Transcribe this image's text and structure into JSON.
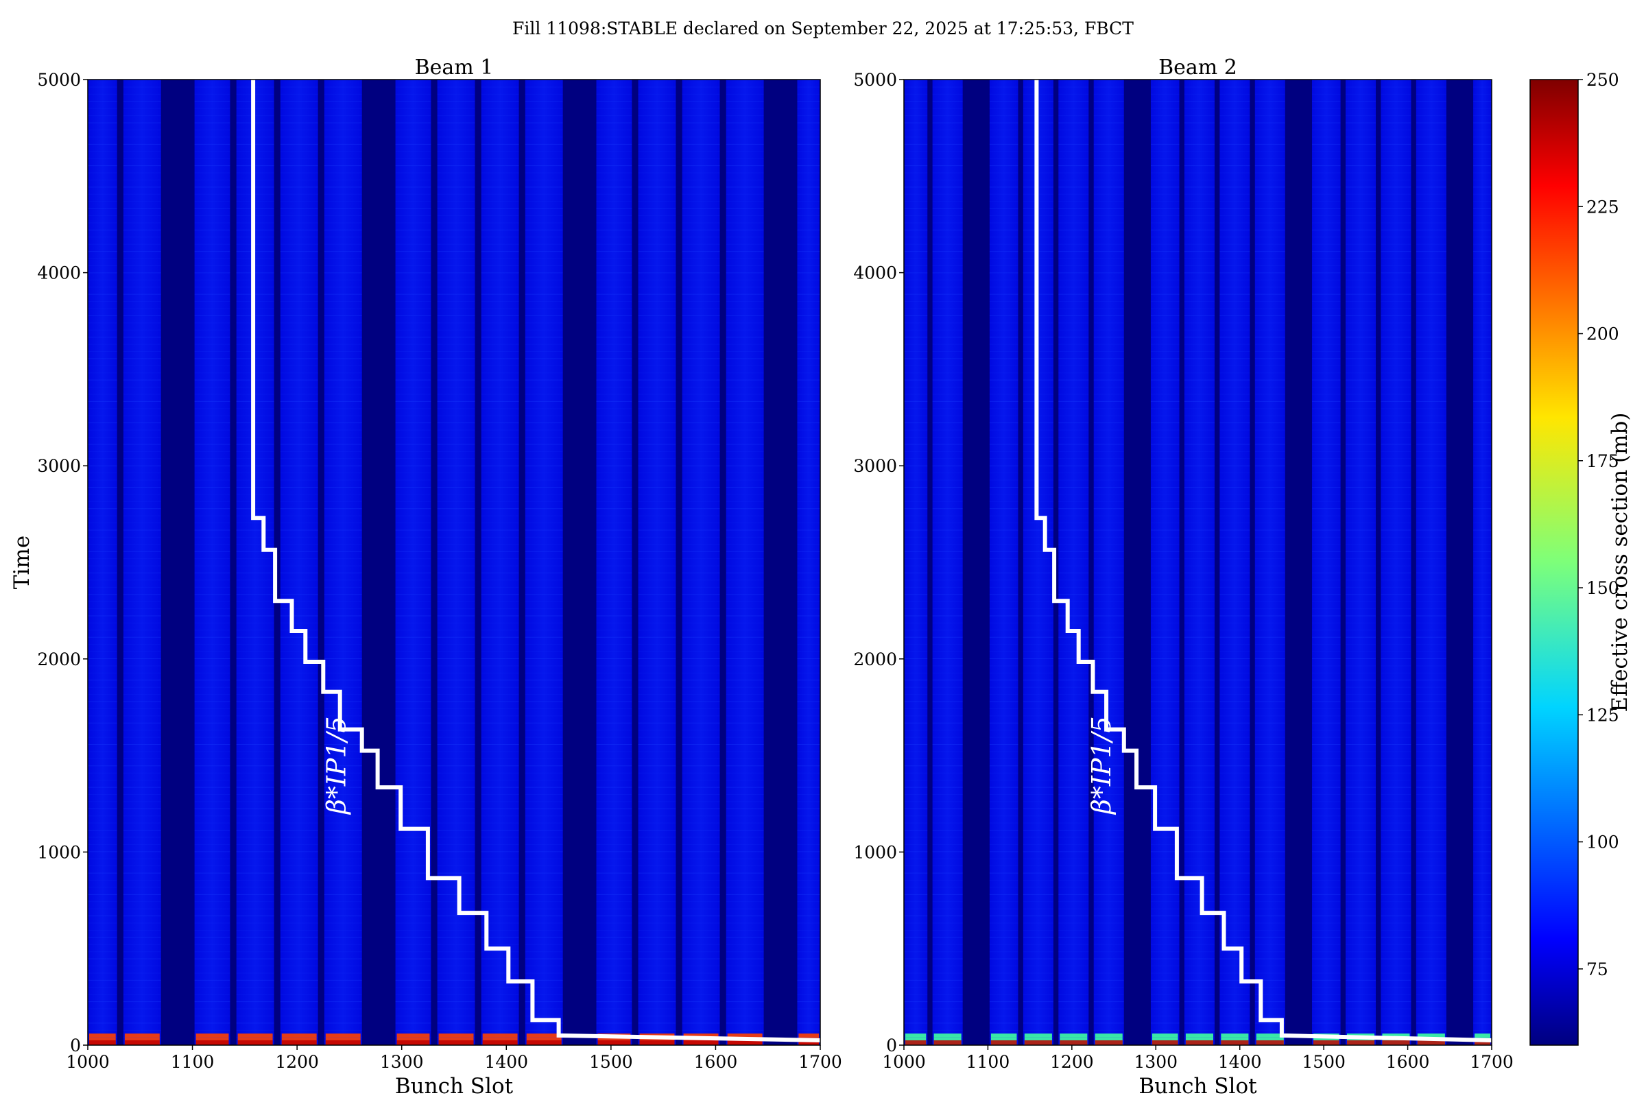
{
  "suptitle": "Fill 11098:STABLE declared on September 22, 2025 at 17:25:53, FBCT",
  "colors": {
    "background": "#0000d8",
    "empty_band": "#000080",
    "bottom_hot": "#ff4000",
    "bottom_warm": "#40ffa0",
    "overlay_line": "#ffffff",
    "text": "#000000"
  },
  "colorbar": {
    "label": "Effective cross section (mb)",
    "range": [
      60,
      250
    ],
    "ticks": [
      "75",
      "100",
      "125",
      "150",
      "175",
      "200",
      "225",
      "250"
    ],
    "colormap": "jet"
  },
  "chart_data": [
    {
      "type": "heatmap",
      "title": "Beam 1",
      "xlabel": "Bunch Slot",
      "ylabel": "Time",
      "xlim": [
        1000,
        1700
      ],
      "ylim": [
        0,
        5000
      ],
      "xticks": [
        "1000",
        "1100",
        "1200",
        "1300",
        "1400",
        "1500",
        "1600",
        "1700"
      ],
      "yticks": [
        "0",
        "1000",
        "2000",
        "3000",
        "4000",
        "5000"
      ],
      "typical_value_mb": 85,
      "empty_slot_ranges": [
        [
          1028,
          1034
        ],
        [
          1070,
          1102
        ],
        [
          1136,
          1142
        ],
        [
          1178,
          1184
        ],
        [
          1220,
          1226
        ],
        [
          1262,
          1294
        ],
        [
          1328,
          1334
        ],
        [
          1370,
          1376
        ],
        [
          1412,
          1418
        ],
        [
          1454,
          1486
        ],
        [
          1520,
          1526
        ],
        [
          1562,
          1568
        ],
        [
          1604,
          1610
        ],
        [
          1646,
          1678
        ]
      ],
      "overlay": {
        "label": "β*IP1/5",
        "steps": [
          {
            "slot": 1158,
            "time": 5000
          },
          {
            "slot": 1158,
            "time": 2730
          },
          {
            "slot": 1168,
            "time": 2730
          },
          {
            "slot": 1168,
            "time": 2565
          },
          {
            "slot": 1179,
            "time": 2565
          },
          {
            "slot": 1179,
            "time": 2300
          },
          {
            "slot": 1195,
            "time": 2300
          },
          {
            "slot": 1195,
            "time": 2145
          },
          {
            "slot": 1208,
            "time": 2145
          },
          {
            "slot": 1208,
            "time": 1985
          },
          {
            "slot": 1225,
            "time": 1985
          },
          {
            "slot": 1225,
            "time": 1830
          },
          {
            "slot": 1241,
            "time": 1830
          },
          {
            "slot": 1241,
            "time": 1635
          },
          {
            "slot": 1262,
            "time": 1635
          },
          {
            "slot": 1262,
            "time": 1525
          },
          {
            "slot": 1277,
            "time": 1525
          },
          {
            "slot": 1277,
            "time": 1335
          },
          {
            "slot": 1299,
            "time": 1335
          },
          {
            "slot": 1299,
            "time": 1120
          },
          {
            "slot": 1325,
            "time": 1120
          },
          {
            "slot": 1325,
            "time": 865
          },
          {
            "slot": 1355,
            "time": 865
          },
          {
            "slot": 1355,
            "time": 685
          },
          {
            "slot": 1381,
            "time": 685
          },
          {
            "slot": 1381,
            "time": 500
          },
          {
            "slot": 1402,
            "time": 500
          },
          {
            "slot": 1402,
            "time": 330
          },
          {
            "slot": 1425,
            "time": 330
          },
          {
            "slot": 1425,
            "time": 130
          },
          {
            "slot": 1450,
            "time": 130
          },
          {
            "slot": 1450,
            "time": 50
          },
          {
            "slot": 1700,
            "time": 25
          }
        ]
      }
    },
    {
      "type": "heatmap",
      "title": "Beam 2",
      "xlabel": "Bunch Slot",
      "ylabel": "",
      "xlim": [
        1000,
        1700
      ],
      "ylim": [
        0,
        5000
      ],
      "xticks": [
        "1000",
        "1100",
        "1200",
        "1300",
        "1400",
        "1500",
        "1600",
        "1700"
      ],
      "yticks": [
        "0",
        "1000",
        "2000",
        "3000",
        "4000",
        "5000"
      ],
      "typical_value_mb": 85,
      "empty_slot_ranges": [
        [
          1028,
          1034
        ],
        [
          1070,
          1102
        ],
        [
          1136,
          1142
        ],
        [
          1178,
          1184
        ],
        [
          1220,
          1226
        ],
        [
          1262,
          1294
        ],
        [
          1328,
          1334
        ],
        [
          1370,
          1376
        ],
        [
          1412,
          1418
        ],
        [
          1454,
          1486
        ],
        [
          1520,
          1526
        ],
        [
          1562,
          1568
        ],
        [
          1604,
          1610
        ],
        [
          1646,
          1678
        ]
      ],
      "overlay": {
        "label": "β*IP1/5",
        "steps": [
          {
            "slot": 1158,
            "time": 5000
          },
          {
            "slot": 1158,
            "time": 2730
          },
          {
            "slot": 1168,
            "time": 2730
          },
          {
            "slot": 1168,
            "time": 2565
          },
          {
            "slot": 1179,
            "time": 2565
          },
          {
            "slot": 1179,
            "time": 2300
          },
          {
            "slot": 1195,
            "time": 2300
          },
          {
            "slot": 1195,
            "time": 2145
          },
          {
            "slot": 1208,
            "time": 2145
          },
          {
            "slot": 1208,
            "time": 1985
          },
          {
            "slot": 1225,
            "time": 1985
          },
          {
            "slot": 1225,
            "time": 1830
          },
          {
            "slot": 1241,
            "time": 1830
          },
          {
            "slot": 1241,
            "time": 1635
          },
          {
            "slot": 1262,
            "time": 1635
          },
          {
            "slot": 1262,
            "time": 1525
          },
          {
            "slot": 1277,
            "time": 1525
          },
          {
            "slot": 1277,
            "time": 1335
          },
          {
            "slot": 1299,
            "time": 1335
          },
          {
            "slot": 1299,
            "time": 1120
          },
          {
            "slot": 1325,
            "time": 1120
          },
          {
            "slot": 1325,
            "time": 865
          },
          {
            "slot": 1355,
            "time": 865
          },
          {
            "slot": 1355,
            "time": 685
          },
          {
            "slot": 1381,
            "time": 685
          },
          {
            "slot": 1381,
            "time": 500
          },
          {
            "slot": 1402,
            "time": 500
          },
          {
            "slot": 1402,
            "time": 330
          },
          {
            "slot": 1425,
            "time": 330
          },
          {
            "slot": 1425,
            "time": 130
          },
          {
            "slot": 1450,
            "time": 130
          },
          {
            "slot": 1450,
            "time": 50
          },
          {
            "slot": 1700,
            "time": 25
          }
        ]
      }
    }
  ]
}
